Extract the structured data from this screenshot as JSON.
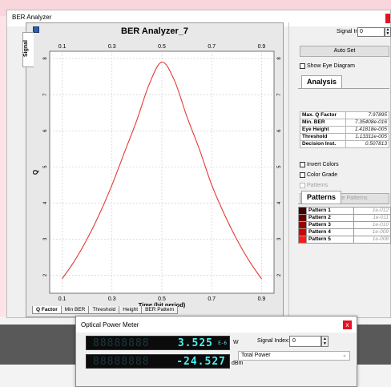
{
  "window": {
    "title": "BER Analyzer"
  },
  "side_tab": "Signal",
  "chart": {
    "title": "BER Analyzer_7"
  },
  "chart_data": {
    "type": "line",
    "title": "BER Analyzer_7",
    "xlabel": "Time (bit period)",
    "ylabel": "Q",
    "xlim": [
      0.05,
      0.95
    ],
    "ylim": [
      1.5,
      8.2
    ],
    "x_ticks": [
      0.1,
      0.3,
      0.5,
      0.7,
      0.9
    ],
    "y_ticks": [
      2,
      3,
      4,
      5,
      6,
      7,
      8
    ],
    "grid": true,
    "color": "#e53935",
    "series": [
      {
        "x": [
          0.1,
          0.15,
          0.2,
          0.25,
          0.3,
          0.35,
          0.4,
          0.45,
          0.5,
          0.55,
          0.6,
          0.65,
          0.7,
          0.75,
          0.8,
          0.85,
          0.9
        ],
        "values": [
          1.9,
          2.4,
          3.0,
          3.7,
          4.5,
          5.4,
          6.3,
          7.3,
          7.9,
          7.4,
          6.4,
          5.5,
          4.5,
          3.7,
          3.0,
          2.4,
          1.9
        ]
      }
    ]
  },
  "bottom_tabs": [
    "Q Factor",
    "Min BER",
    "Threshold",
    "Height",
    "BER Pattern"
  ],
  "panel": {
    "signal_index_label": "Signal Index:",
    "signal_index_value": "0",
    "auto_set": "Auto Set",
    "show_eye": "Show Eye Diagram",
    "analysis_tab": "Analysis",
    "analysis": [
      {
        "k": "Max. Q Factor",
        "v": "7.97895"
      },
      {
        "k": "Min. BER",
        "v": "7.35408e-016"
      },
      {
        "k": "Eye Height",
        "v": "1.41818e-005"
      },
      {
        "k": "Threshold",
        "v": "1.13311e-005"
      },
      {
        "k": "Decision Inst.",
        "v": "0.507813"
      }
    ],
    "invert_colors": "Invert Colors",
    "color_grade": "Color Grade",
    "patterns_cb": "Patterns",
    "calc_patterns": "Calculate Patterns",
    "patterns_tab": "Patterns",
    "patterns": [
      {
        "k": "Pattern 1",
        "v": "1e-012",
        "color": "#3a0000"
      },
      {
        "k": "Pattern 2",
        "v": "1e-011",
        "color": "#6b0000"
      },
      {
        "k": "Pattern 3",
        "v": "1e-010",
        "color": "#9c0000"
      },
      {
        "k": "Pattern 4",
        "v": "1e-009",
        "color": "#d10000"
      },
      {
        "k": "Pattern 5",
        "v": "1e-008",
        "color": "#ff1a1a"
      }
    ]
  },
  "opm": {
    "title": "Optical Power Meter",
    "ghost": "88888888",
    "watts": "3.525",
    "watts_exp": "E-6",
    "watts_unit": "W",
    "dbm": "-24.527",
    "dbm_unit": "dBm",
    "signal_index_label": "Signal Index:",
    "signal_index_value": "0",
    "mode": "Total Power"
  }
}
